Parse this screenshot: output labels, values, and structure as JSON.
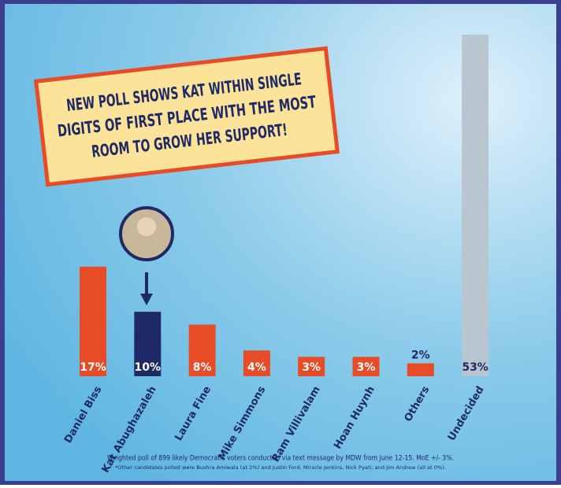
{
  "chart_data": {
    "type": "bar",
    "title": [
      "NEW POLL SHOWS KAT WITHIN SINGLE",
      "DIGITS OF FIRST PLACE WITH THE MOST",
      "ROOM TO GROW HER SUPPORT!"
    ],
    "categories": [
      "Daniel Biss",
      "Kat Abughazaleh",
      "Laura Fine",
      "Mike Simmons",
      "Ram Villivalam",
      "Hoan Huynh",
      "Others",
      "Undecided"
    ],
    "values": [
      17,
      10,
      8,
      4,
      3,
      3,
      2,
      53
    ],
    "value_labels": [
      "17%",
      "10%",
      "8%",
      "4%",
      "3%",
      "3%",
      "2%",
      "53%"
    ],
    "colors": [
      "#e84c26",
      "#1f2966",
      "#e84c26",
      "#e84c26",
      "#e84c26",
      "#e84c26",
      "#e84c26",
      "#b9c6cf"
    ],
    "footnotes": [
      "Weighted poll of 899 likely Democratic voters conducted via text message by MDW from June 12-15. MoE +/- 3%.",
      "*Other candidates polled were Bushra Amiwala (at 2%) and Justin Ford, Miracle Jenkins, Nick Pyati, and Jim Andrew (all at 0%)."
    ]
  }
}
